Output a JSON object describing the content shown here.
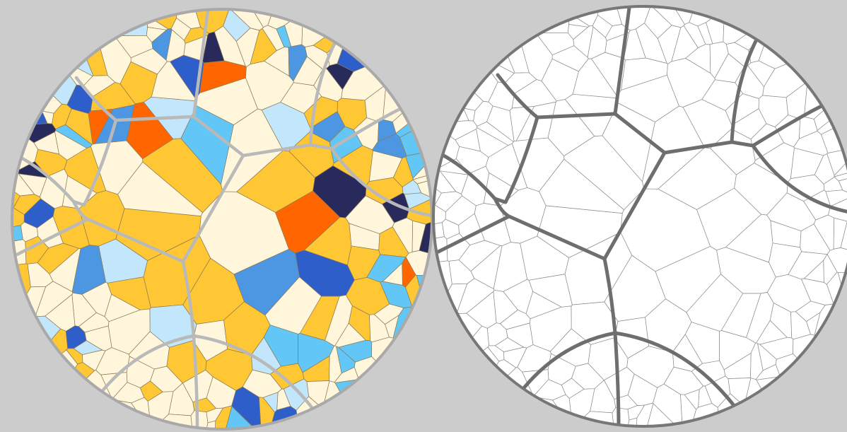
{
  "colors": {
    "background": "#cccccc",
    "cream": "#fff6dc",
    "gold": "#ffc733",
    "light_blue": "#c2e6fb",
    "sky_blue": "#62c6f7",
    "mid_blue": "#4d96e2",
    "royal_blue": "#2e5ec9",
    "navy": "#282a5c",
    "orange": "#ff6600",
    "inner_boundary_colored": "#b9b9b9",
    "inner_boundary_outline": "#6e6e6e"
  },
  "panels": [
    {
      "name": "colored-tiling",
      "style": "filled"
    },
    {
      "name": "outline-tiling",
      "style": "outline"
    }
  ],
  "color_pattern": [
    "cream",
    "gold",
    "cream",
    "light_blue",
    "gold",
    "cream",
    "sky_blue",
    "cream",
    "gold",
    "mid_blue",
    "cream",
    "gold",
    "cream",
    "light_blue",
    "gold",
    "cream",
    "orange",
    "cream",
    "gold",
    "sky_blue",
    "cream",
    "royal_blue",
    "gold",
    "cream",
    "navy",
    "cream",
    "gold",
    "light_blue"
  ]
}
